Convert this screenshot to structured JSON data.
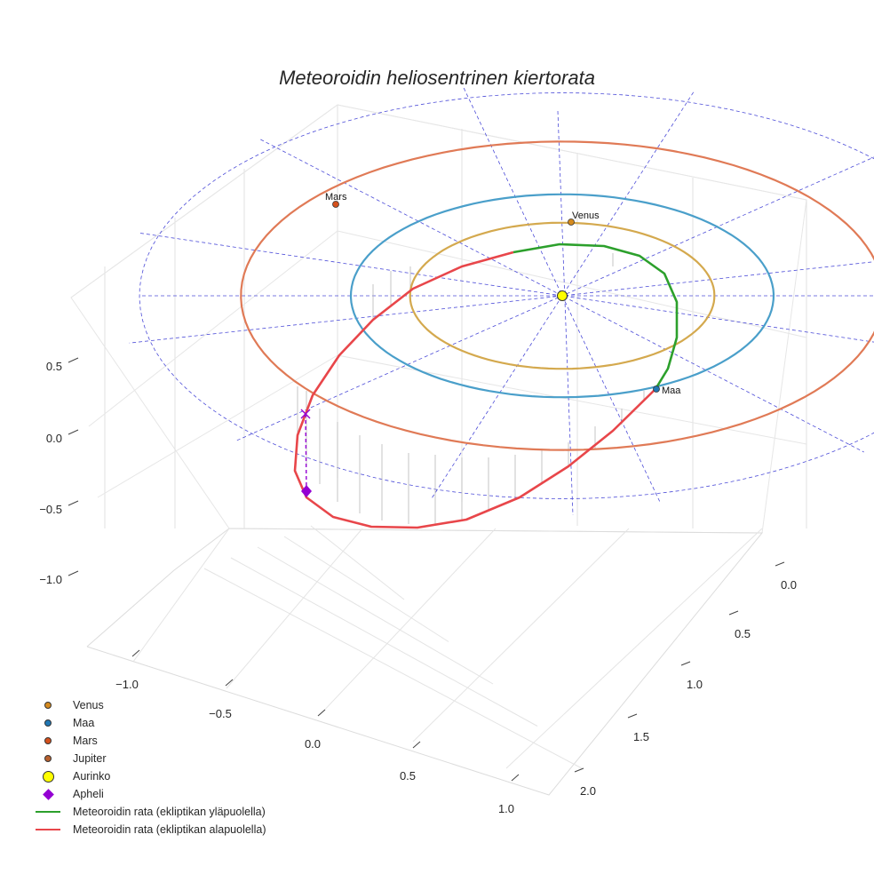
{
  "chart_data": {
    "type": "line",
    "title": "Meteoroidin heliosentrinen kiertorata",
    "axes": {
      "x": {
        "ticks": [
          -1.0,
          -0.5,
          0.0,
          0.5,
          1.0
        ],
        "tick_labels": [
          "−1.0",
          "−0.5",
          "0.0",
          "0.5",
          "1.0"
        ]
      },
      "y": {
        "ticks": [
          0.0,
          0.5,
          1.0,
          1.5,
          2.0
        ],
        "tick_labels": [
          "0.0",
          "0.5",
          "1.0",
          "1.5",
          "2.0"
        ]
      },
      "z": {
        "ticks": [
          0.5,
          0.0,
          -0.5,
          -1.0
        ],
        "tick_labels": [
          "0.5",
          "0.0",
          "−0.5",
          "−1.0"
        ]
      }
    },
    "planet_labels": {
      "venus": "Venus",
      "earth": "Maa",
      "mars": "Mars"
    },
    "orbits": [
      {
        "name": "Venus",
        "radius_au": 0.72,
        "color": "#d4a94e"
      },
      {
        "name": "Maa",
        "radius_au": 1.0,
        "color": "#4a9fca"
      },
      {
        "name": "Mars",
        "radius_au": 1.52,
        "color": "#e07a56"
      }
    ],
    "meteoroid": {
      "above_color": "#2ca02c",
      "below_color": "#e8464a",
      "aphelion_marker_color": "#9400d3"
    },
    "legend": [
      {
        "label": "Venus",
        "kind": "dot",
        "color": "#d58a1e"
      },
      {
        "label": "Maa",
        "kind": "dot",
        "color": "#1f77b4"
      },
      {
        "label": "Mars",
        "kind": "dot",
        "color": "#d4501c"
      },
      {
        "label": "Jupiter",
        "kind": "dot",
        "color": "#b8602e"
      },
      {
        "label": "Aurinko",
        "kind": "dot-big",
        "color": "#ffff00"
      },
      {
        "label": "Apheli",
        "kind": "diamond",
        "color": "#9400d3"
      },
      {
        "label": "Meteoroidin rata (ekliptikan yläpuolella)",
        "kind": "line",
        "color": "#2ca02c"
      },
      {
        "label": "Meteoroidin rata (ekliptikan alapuolella)",
        "kind": "line",
        "color": "#e8464a"
      }
    ]
  }
}
